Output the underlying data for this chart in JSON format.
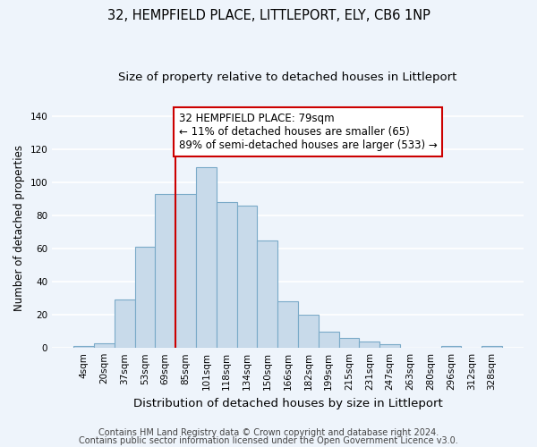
{
  "title": "32, HEMPFIELD PLACE, LITTLEPORT, ELY, CB6 1NP",
  "subtitle": "Size of property relative to detached houses in Littleport",
  "xlabel": "Distribution of detached houses by size in Littleport",
  "ylabel": "Number of detached properties",
  "bar_labels": [
    "4sqm",
    "20sqm",
    "37sqm",
    "53sqm",
    "69sqm",
    "85sqm",
    "101sqm",
    "118sqm",
    "134sqm",
    "150sqm",
    "166sqm",
    "182sqm",
    "199sqm",
    "215sqm",
    "231sqm",
    "247sqm",
    "263sqm",
    "280sqm",
    "296sqm",
    "312sqm",
    "328sqm"
  ],
  "bar_values": [
    1,
    3,
    29,
    61,
    93,
    93,
    109,
    88,
    86,
    65,
    28,
    20,
    10,
    6,
    4,
    2,
    0,
    0,
    1,
    0,
    1
  ],
  "bar_color": "#c8daea",
  "bar_edge_color": "#7aaac8",
  "vline_color": "#cc0000",
  "annotation_text": "32 HEMPFIELD PLACE: 79sqm\n← 11% of detached houses are smaller (65)\n89% of semi-detached houses are larger (533) →",
  "annotation_box_edge": "#cc0000",
  "annotation_fontsize": 8.5,
  "ylim": [
    0,
    145
  ],
  "yticks": [
    0,
    20,
    40,
    60,
    80,
    100,
    120,
    140
  ],
  "footer1": "Contains HM Land Registry data © Crown copyright and database right 2024.",
  "footer2": "Contains public sector information licensed under the Open Government Licence v3.0.",
  "title_fontsize": 10.5,
  "subtitle_fontsize": 9.5,
  "xlabel_fontsize": 9.5,
  "ylabel_fontsize": 8.5,
  "tick_fontsize": 7.5,
  "footer_fontsize": 7,
  "background_color": "#eef4fb"
}
